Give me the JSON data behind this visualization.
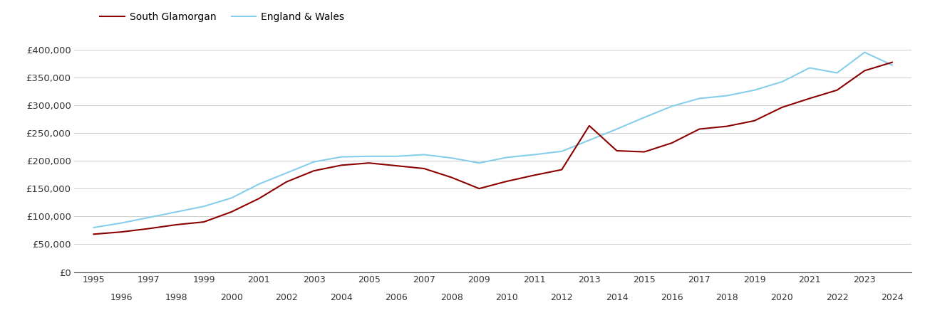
{
  "years": [
    1995,
    1996,
    1997,
    1998,
    1999,
    2000,
    2001,
    2002,
    2003,
    2004,
    2005,
    2006,
    2007,
    2008,
    2009,
    2010,
    2011,
    2012,
    2013,
    2014,
    2015,
    2016,
    2017,
    2018,
    2019,
    2020,
    2021,
    2022,
    2023,
    2024
  ],
  "south_glamorgan": [
    68000,
    72000,
    78000,
    85000,
    90000,
    108000,
    132000,
    162000,
    182000,
    192000,
    196000,
    191000,
    186000,
    170000,
    150000,
    163000,
    174000,
    184000,
    263000,
    218000,
    216000,
    232000,
    257000,
    262000,
    272000,
    296000,
    312000,
    327000,
    362000,
    377000
  ],
  "england_wales": [
    80000,
    88000,
    98000,
    108000,
    118000,
    133000,
    158000,
    178000,
    198000,
    207000,
    208000,
    208000,
    211000,
    205000,
    196000,
    206000,
    211000,
    217000,
    237000,
    257000,
    278000,
    298000,
    312000,
    317000,
    327000,
    342000,
    367000,
    358000,
    395000,
    372000
  ],
  "south_glamorgan_color": "#8B0000",
  "england_wales_color": "#87CEEB",
  "legend_label_sg": "South Glamorgan",
  "legend_label_ew": "England & Wales",
  "ylim": [
    0,
    420000
  ],
  "yticks": [
    0,
    50000,
    100000,
    150000,
    200000,
    250000,
    300000,
    350000,
    400000
  ],
  "ytick_labels": [
    "£0",
    "£50,000",
    "£100,000",
    "£150,000",
    "£200,000",
    "£250,000",
    "£300,000",
    "£350,000",
    "£400,000"
  ],
  "line_width": 1.5,
  "background_color": "#ffffff",
  "grid_color": "#d0d0d0"
}
